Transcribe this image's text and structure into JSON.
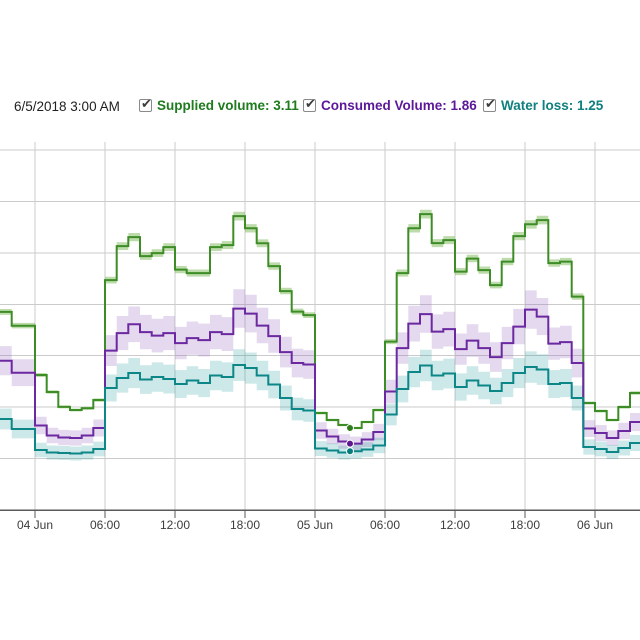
{
  "page": {
    "background": "#ffffff"
  },
  "toolbar": {
    "timestamp_label": "6/5/2018 3:00 AM",
    "legend": [
      {
        "id": "supplied",
        "display": "Supplied volume: 3.11",
        "label": "Supplied volume",
        "value": "3.11",
        "checked": "checked",
        "color": "#1e7b1e"
      },
      {
        "id": "consumed",
        "display": "Consumed Volume: 1.86",
        "label": "Consumed Volume",
        "value": "1.86",
        "checked": "checked",
        "color": "#5c1899"
      },
      {
        "id": "loss",
        "display": "Water loss: 1.25",
        "label": "Water loss",
        "value": "1.25",
        "checked": "checked",
        "color": "#0f7f7f"
      }
    ]
  },
  "chart_data": {
    "type": "line",
    "subtype": "step-hourly",
    "title": "",
    "xlabel": "",
    "ylabel": "",
    "grid": true,
    "x_start": "2018-06-03 21:00",
    "x_step_hours": 1,
    "ylim": [
      -3.45,
      26.0
    ],
    "x_ticks": [
      {
        "index": 3,
        "label": "04 Jun"
      },
      {
        "index": 9,
        "label": "06:00"
      },
      {
        "index": 15,
        "label": "12:00"
      },
      {
        "index": 21,
        "label": "18:00"
      },
      {
        "index": 27,
        "label": "05 Jun"
      },
      {
        "index": 33,
        "label": "06:00"
      },
      {
        "index": 39,
        "label": "12:00"
      },
      {
        "index": 45,
        "label": "18:00"
      },
      {
        "index": 51,
        "label": "06 Jun"
      }
    ],
    "selected": {
      "index": 30,
      "timestamp": "6/5/2018 3:00 AM",
      "points": [
        {
          "series": "supplied",
          "value": 3.11
        },
        {
          "series": "consumed",
          "value": 1.86
        },
        {
          "series": "loss",
          "value": 1.25
        }
      ]
    },
    "series": [
      {
        "id": "consumed",
        "name": "Consumed Volume",
        "line_color": "#6b28a0",
        "band_color": "rgba(148,103,189,0.25)",
        "marker_color": "#5c1690",
        "band_base": 0.4,
        "band_per_unit": 0.09,
        "values": [
          8.5,
          7.54,
          7.54,
          3.31,
          2.51,
          2.35,
          2.31,
          2.51,
          3.11,
          9.31,
          10.71,
          11.41,
          10.79,
          10.51,
          10.71,
          9.91,
          10.31,
          10.15,
          10.79,
          10.63,
          12.67,
          12.27,
          11.31,
          10.47,
          9.19,
          8.31,
          8.19,
          2.91,
          2.43,
          2.03,
          1.86,
          2.19,
          2.79,
          6.03,
          9.51,
          11.47,
          12.23,
          10.83,
          11.03,
          9.43,
          10.11,
          9.51,
          8.79,
          9.91,
          11.23,
          12.59,
          12.03,
          9.87,
          9.99,
          8.31,
          3.07,
          2.71,
          2.31,
          2.87,
          3.59
        ]
      },
      {
        "id": "loss",
        "name": "Water loss",
        "line_color": "#0c8686",
        "band_color": "rgba(23,150,150,0.22)",
        "marker_color": "#067d7d",
        "band_base": 0.45,
        "band_per_unit": 0.1,
        "values": [
          3.83,
          3.03,
          3.03,
          1.35,
          1.15,
          1.11,
          1.07,
          1.15,
          1.43,
          6.31,
          7.11,
          7.51,
          6.99,
          7.19,
          7.03,
          6.63,
          6.91,
          6.71,
          7.31,
          7.19,
          8.15,
          7.91,
          7.31,
          6.59,
          5.51,
          4.63,
          4.51,
          1.47,
          1.31,
          1.15,
          1.25,
          1.39,
          1.71,
          4.19,
          6.23,
          7.59,
          8.11,
          7.31,
          7.47,
          6.39,
          6.91,
          6.51,
          6.07,
          6.71,
          7.51,
          7.99,
          7.79,
          6.63,
          6.71,
          5.51,
          1.59,
          1.43,
          1.19,
          1.51,
          1.91
        ]
      },
      {
        "id": "supplied",
        "name": "Supplied volume",
        "line_color": "#3d8d26",
        "band_color": "rgba(110,175,70,0.45)",
        "marker_color": "#2e7d1a",
        "band_base": 0.05,
        "band_per_unit": 0.015,
        "values": [
          12.4,
          11.3,
          11.3,
          7.35,
          5.99,
          4.8,
          4.55,
          4.7,
          5.35,
          14.95,
          17.67,
          18.39,
          16.87,
          17.11,
          17.59,
          15.79,
          15.51,
          15.51,
          17.59,
          17.75,
          20.07,
          19.09,
          17.89,
          16.07,
          14.07,
          12.43,
          12.15,
          4.31,
          3.75,
          3.35,
          3.11,
          3.59,
          4.55,
          10.03,
          15.51,
          19.09,
          20.23,
          17.91,
          18.15,
          15.63,
          16.67,
          15.75,
          14.55,
          16.43,
          18.47,
          19.41,
          19.75,
          16.31,
          16.43,
          13.63,
          5.11,
          4.47,
          3.75,
          4.79,
          5.91
        ]
      }
    ],
    "style": {
      "grid_color": "#cbcbcb",
      "axis_color": "#5a5a5a",
      "tick_label_color": "#3c3c3c"
    }
  }
}
